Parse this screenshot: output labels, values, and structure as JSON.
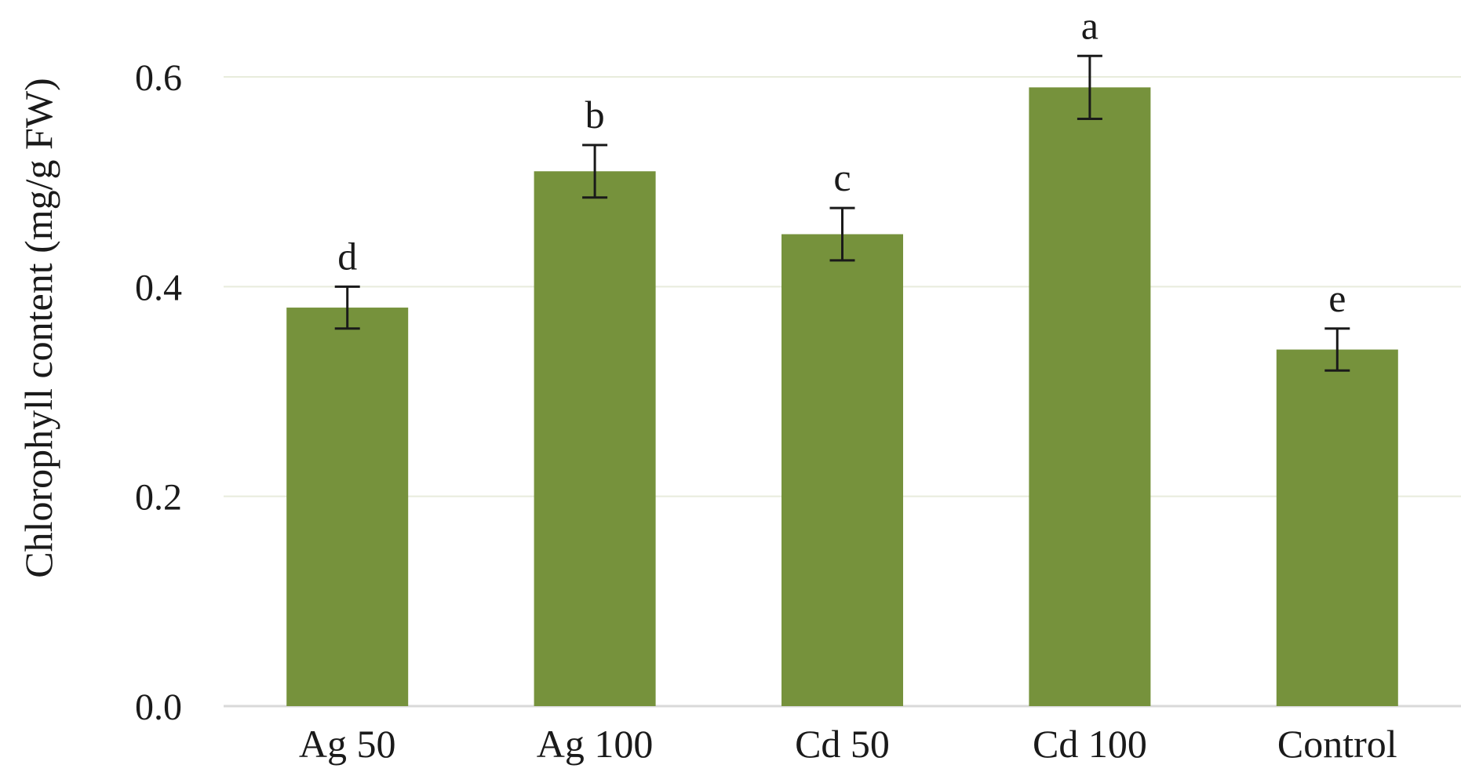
{
  "chart_data": {
    "type": "bar",
    "title": "",
    "xlabel": "",
    "ylabel": "Chlorophyll content  (mg/g FW)",
    "categories": [
      "Ag 50",
      "Ag 100",
      "Cd 50",
      "Cd 100",
      "Control"
    ],
    "series": [
      {
        "values": [
          0.38,
          0.51,
          0.45,
          0.59,
          0.34
        ],
        "error": [
          0.02,
          0.025,
          0.025,
          0.03,
          0.02
        ],
        "significance_letters": [
          "d",
          "b",
          "c",
          "a",
          "e"
        ]
      }
    ],
    "ylim": [
      0,
      0.6
    ],
    "yticks": [
      "0.0",
      "0.2",
      "0.4",
      "0.6"
    ],
    "grid": true,
    "legend": "none",
    "colors": {
      "bar": "#76923c",
      "grid": "#e8ecdc",
      "axis": "#d9d9d9",
      "error": "#1a1a1a"
    }
  }
}
